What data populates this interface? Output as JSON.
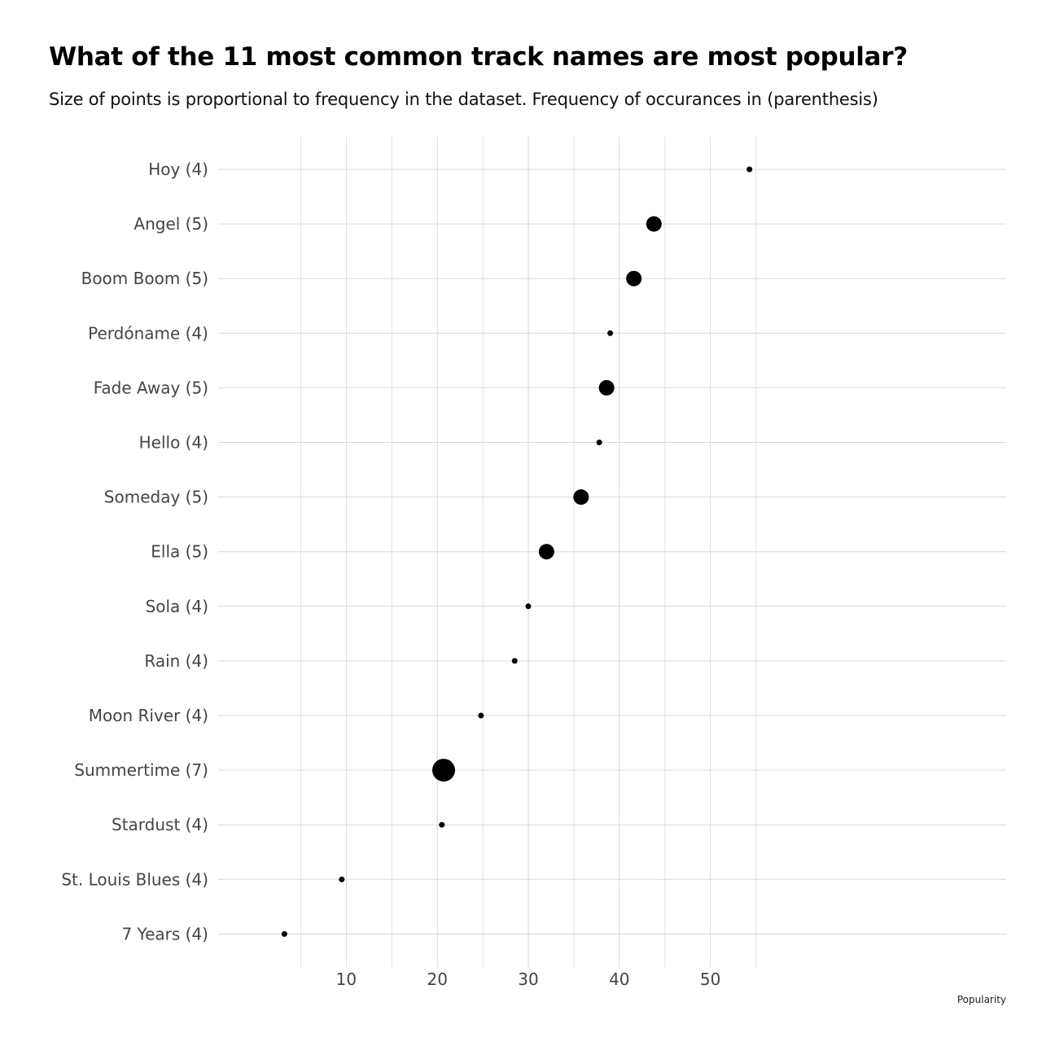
{
  "chart_data": {
    "type": "scatter",
    "title": "What of the 11 most common track names are most popular?",
    "subtitle": "Size of points is proportional to frequency in the dataset. Frequency of occurances in (parenthesis)",
    "xlabel": "Popularity",
    "ylabel": "",
    "xlim": [
      1.5,
      57
    ],
    "x_ticks": [
      10,
      20,
      30,
      40,
      50
    ],
    "grid": true,
    "legend": "none",
    "point_color": "#000000",
    "points": [
      {
        "label": "Hoy (4)",
        "popularity": 54.3,
        "frequency": 4
      },
      {
        "label": "Angel (5)",
        "popularity": 43.8,
        "frequency": 5
      },
      {
        "label": "Boom Boom (5)",
        "popularity": 41.6,
        "frequency": 5
      },
      {
        "label": "Perdóname (4)",
        "popularity": 39.0,
        "frequency": 4
      },
      {
        "label": "Fade Away (5)",
        "popularity": 38.6,
        "frequency": 5
      },
      {
        "label": "Hello (4)",
        "popularity": 37.8,
        "frequency": 4
      },
      {
        "label": "Someday (5)",
        "popularity": 35.8,
        "frequency": 5
      },
      {
        "label": "Ella (5)",
        "popularity": 32.0,
        "frequency": 5
      },
      {
        "label": "Sola (4)",
        "popularity": 30.0,
        "frequency": 4
      },
      {
        "label": "Rain (4)",
        "popularity": 28.5,
        "frequency": 4
      },
      {
        "label": "Moon River (4)",
        "popularity": 24.8,
        "frequency": 4
      },
      {
        "label": "Summertime (7)",
        "popularity": 20.7,
        "frequency": 7
      },
      {
        "label": "Stardust (4)",
        "popularity": 20.5,
        "frequency": 4
      },
      {
        "label": "St. Louis Blues (4)",
        "popularity": 9.5,
        "frequency": 4
      },
      {
        "label": "7 Years (4)",
        "popularity": 3.2,
        "frequency": 4
      }
    ]
  }
}
